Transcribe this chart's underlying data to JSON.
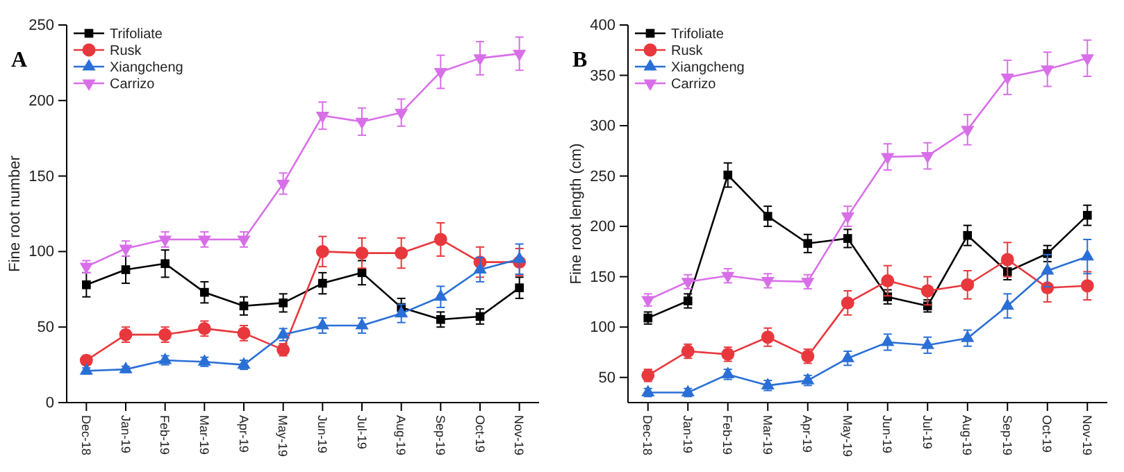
{
  "chart_data": [
    {
      "type": "line",
      "annotations": [
        "A"
      ],
      "ylabel": "Fine root number",
      "categories": [
        "Dec-18",
        "Jan-19",
        "Feb-19",
        "Mar-19",
        "Apr-19",
        "May-19",
        "Jun-19",
        "Jul-19",
        "Aug-19",
        "Sep-19",
        "Oct-19",
        "Nov-19"
      ],
      "ylim": [
        0,
        250
      ],
      "yticks": [
        0,
        50,
        100,
        150,
        200,
        250
      ],
      "legend": "top left",
      "grid": false,
      "series": [
        {
          "name": "Trifoliate",
          "color": "#000000",
          "marker": "square",
          "values": [
            78,
            88,
            92,
            73,
            64,
            66,
            79,
            86,
            63,
            55,
            57,
            76
          ],
          "errors": [
            8,
            9,
            9,
            7,
            6,
            6,
            7,
            8,
            6,
            5,
            5,
            7
          ]
        },
        {
          "name": "Rusk",
          "color": "#e8383d",
          "marker": "circle",
          "values": [
            28,
            45,
            45,
            49,
            46,
            35,
            100,
            99,
            99,
            108,
            93,
            93
          ],
          "errors": [
            3,
            5,
            5,
            5,
            5,
            4,
            10,
            10,
            10,
            11,
            10,
            9
          ]
        },
        {
          "name": "Xiangcheng",
          "color": "#2a6fd6",
          "marker": "triangle",
          "values": [
            21,
            22,
            28,
            27,
            25,
            45,
            51,
            51,
            59,
            70,
            88,
            95
          ],
          "errors": [
            2,
            2,
            3,
            3,
            3,
            4,
            5,
            5,
            6,
            7,
            8,
            10
          ]
        },
        {
          "name": "Carrizo",
          "color": "#d86fe8",
          "marker": "triangle-down",
          "values": [
            90,
            102,
            108,
            108,
            108,
            145,
            190,
            186,
            192,
            219,
            228,
            231
          ],
          "errors": [
            4,
            5,
            5,
            5,
            5,
            7,
            9,
            9,
            9,
            11,
            11,
            11
          ]
        }
      ]
    },
    {
      "type": "line",
      "annotations": [
        "B"
      ],
      "ylabel": "Fine root length (cm)",
      "categories": [
        "Dec-18",
        "Jan-19",
        "Feb-19",
        "Mar-19",
        "Apr-19",
        "May-19",
        "Jun-19",
        "Jul-19",
        "Aug-19",
        "Sep-19",
        "Oct-19",
        "Nov-19"
      ],
      "ylim": [
        25,
        400
      ],
      "yticks": [
        50,
        100,
        150,
        200,
        250,
        300,
        350,
        400
      ],
      "legend": "top left",
      "grid": false,
      "series": [
        {
          "name": "Trifoliate",
          "color": "#000000",
          "marker": "square",
          "values": [
            109,
            126,
            251,
            210,
            183,
            188,
            130,
            121,
            191,
            155,
            173,
            211
          ],
          "errors": [
            6,
            7,
            12,
            10,
            9,
            9,
            7,
            6,
            10,
            8,
            8,
            10
          ]
        },
        {
          "name": "Rusk",
          "color": "#e8383d",
          "marker": "circle",
          "values": [
            52,
            76,
            73,
            90,
            71,
            124,
            146,
            136,
            142,
            167,
            139,
            141
          ],
          "errors": [
            6,
            7,
            7,
            9,
            7,
            12,
            15,
            14,
            14,
            17,
            14,
            14
          ]
        },
        {
          "name": "Xiangcheng",
          "color": "#2a6fd6",
          "marker": "triangle",
          "values": [
            35,
            35,
            53,
            42,
            47,
            69,
            85,
            82,
            89,
            121,
            156,
            170
          ],
          "errors": [
            4,
            4,
            5,
            5,
            5,
            7,
            8,
            8,
            8,
            12,
            16,
            17
          ]
        },
        {
          "name": "Carrizo",
          "color": "#d86fe8",
          "marker": "triangle-down",
          "values": [
            127,
            145,
            151,
            146,
            145,
            210,
            269,
            270,
            296,
            348,
            356,
            367
          ],
          "errors": [
            6,
            7,
            7,
            7,
            7,
            10,
            13,
            13,
            15,
            17,
            17,
            18
          ]
        }
      ]
    }
  ]
}
